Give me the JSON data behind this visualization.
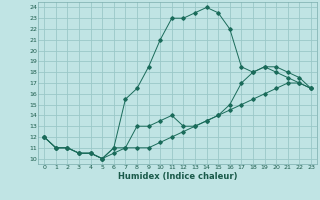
{
  "xlabel": "Humidex (Indice chaleur)",
  "background_color": "#c0e4e4",
  "grid_color": "#9ac8c8",
  "line_color": "#1a6b5a",
  "xlim": [
    -0.5,
    23.5
  ],
  "ylim": [
    9.5,
    24.5
  ],
  "xticks": [
    0,
    1,
    2,
    3,
    4,
    5,
    6,
    7,
    8,
    9,
    10,
    11,
    12,
    13,
    14,
    15,
    16,
    17,
    18,
    19,
    20,
    21,
    22,
    23
  ],
  "yticks": [
    10,
    11,
    12,
    13,
    14,
    15,
    16,
    17,
    18,
    19,
    20,
    21,
    22,
    23,
    24
  ],
  "line1_x": [
    0,
    1,
    2,
    3,
    4,
    5,
    6,
    7,
    8,
    9,
    10,
    11,
    12,
    13,
    14,
    15,
    16,
    17,
    18,
    19,
    20,
    21,
    22,
    23
  ],
  "line1_y": [
    12,
    11,
    11,
    10.5,
    10.5,
    10,
    10.5,
    11,
    11,
    11,
    11.5,
    12,
    12.5,
    13,
    13.5,
    14,
    14.5,
    15,
    15.5,
    16,
    16.5,
    17,
    17,
    16.5
  ],
  "line2_x": [
    0,
    1,
    2,
    3,
    4,
    5,
    6,
    7,
    8,
    9,
    10,
    11,
    12,
    13,
    14,
    15,
    16,
    17,
    18,
    19,
    20,
    21,
    22,
    23
  ],
  "line2_y": [
    12,
    11,
    11,
    10.5,
    10.5,
    10,
    11,
    15.5,
    16.5,
    18.5,
    21,
    23,
    23,
    23.5,
    24,
    23.5,
    22,
    18.5,
    18,
    18.5,
    18,
    17.5,
    17,
    16.5
  ],
  "line3_x": [
    0,
    1,
    2,
    3,
    4,
    5,
    6,
    7,
    8,
    9,
    10,
    11,
    12,
    13,
    14,
    15,
    16,
    17,
    18,
    19,
    20,
    21,
    22,
    23
  ],
  "line3_y": [
    12,
    11,
    11,
    10.5,
    10.5,
    10,
    11,
    11,
    13,
    13,
    13.5,
    14,
    13,
    13,
    13.5,
    14,
    15,
    17,
    18,
    18.5,
    18.5,
    18,
    17.5,
    16.5
  ]
}
